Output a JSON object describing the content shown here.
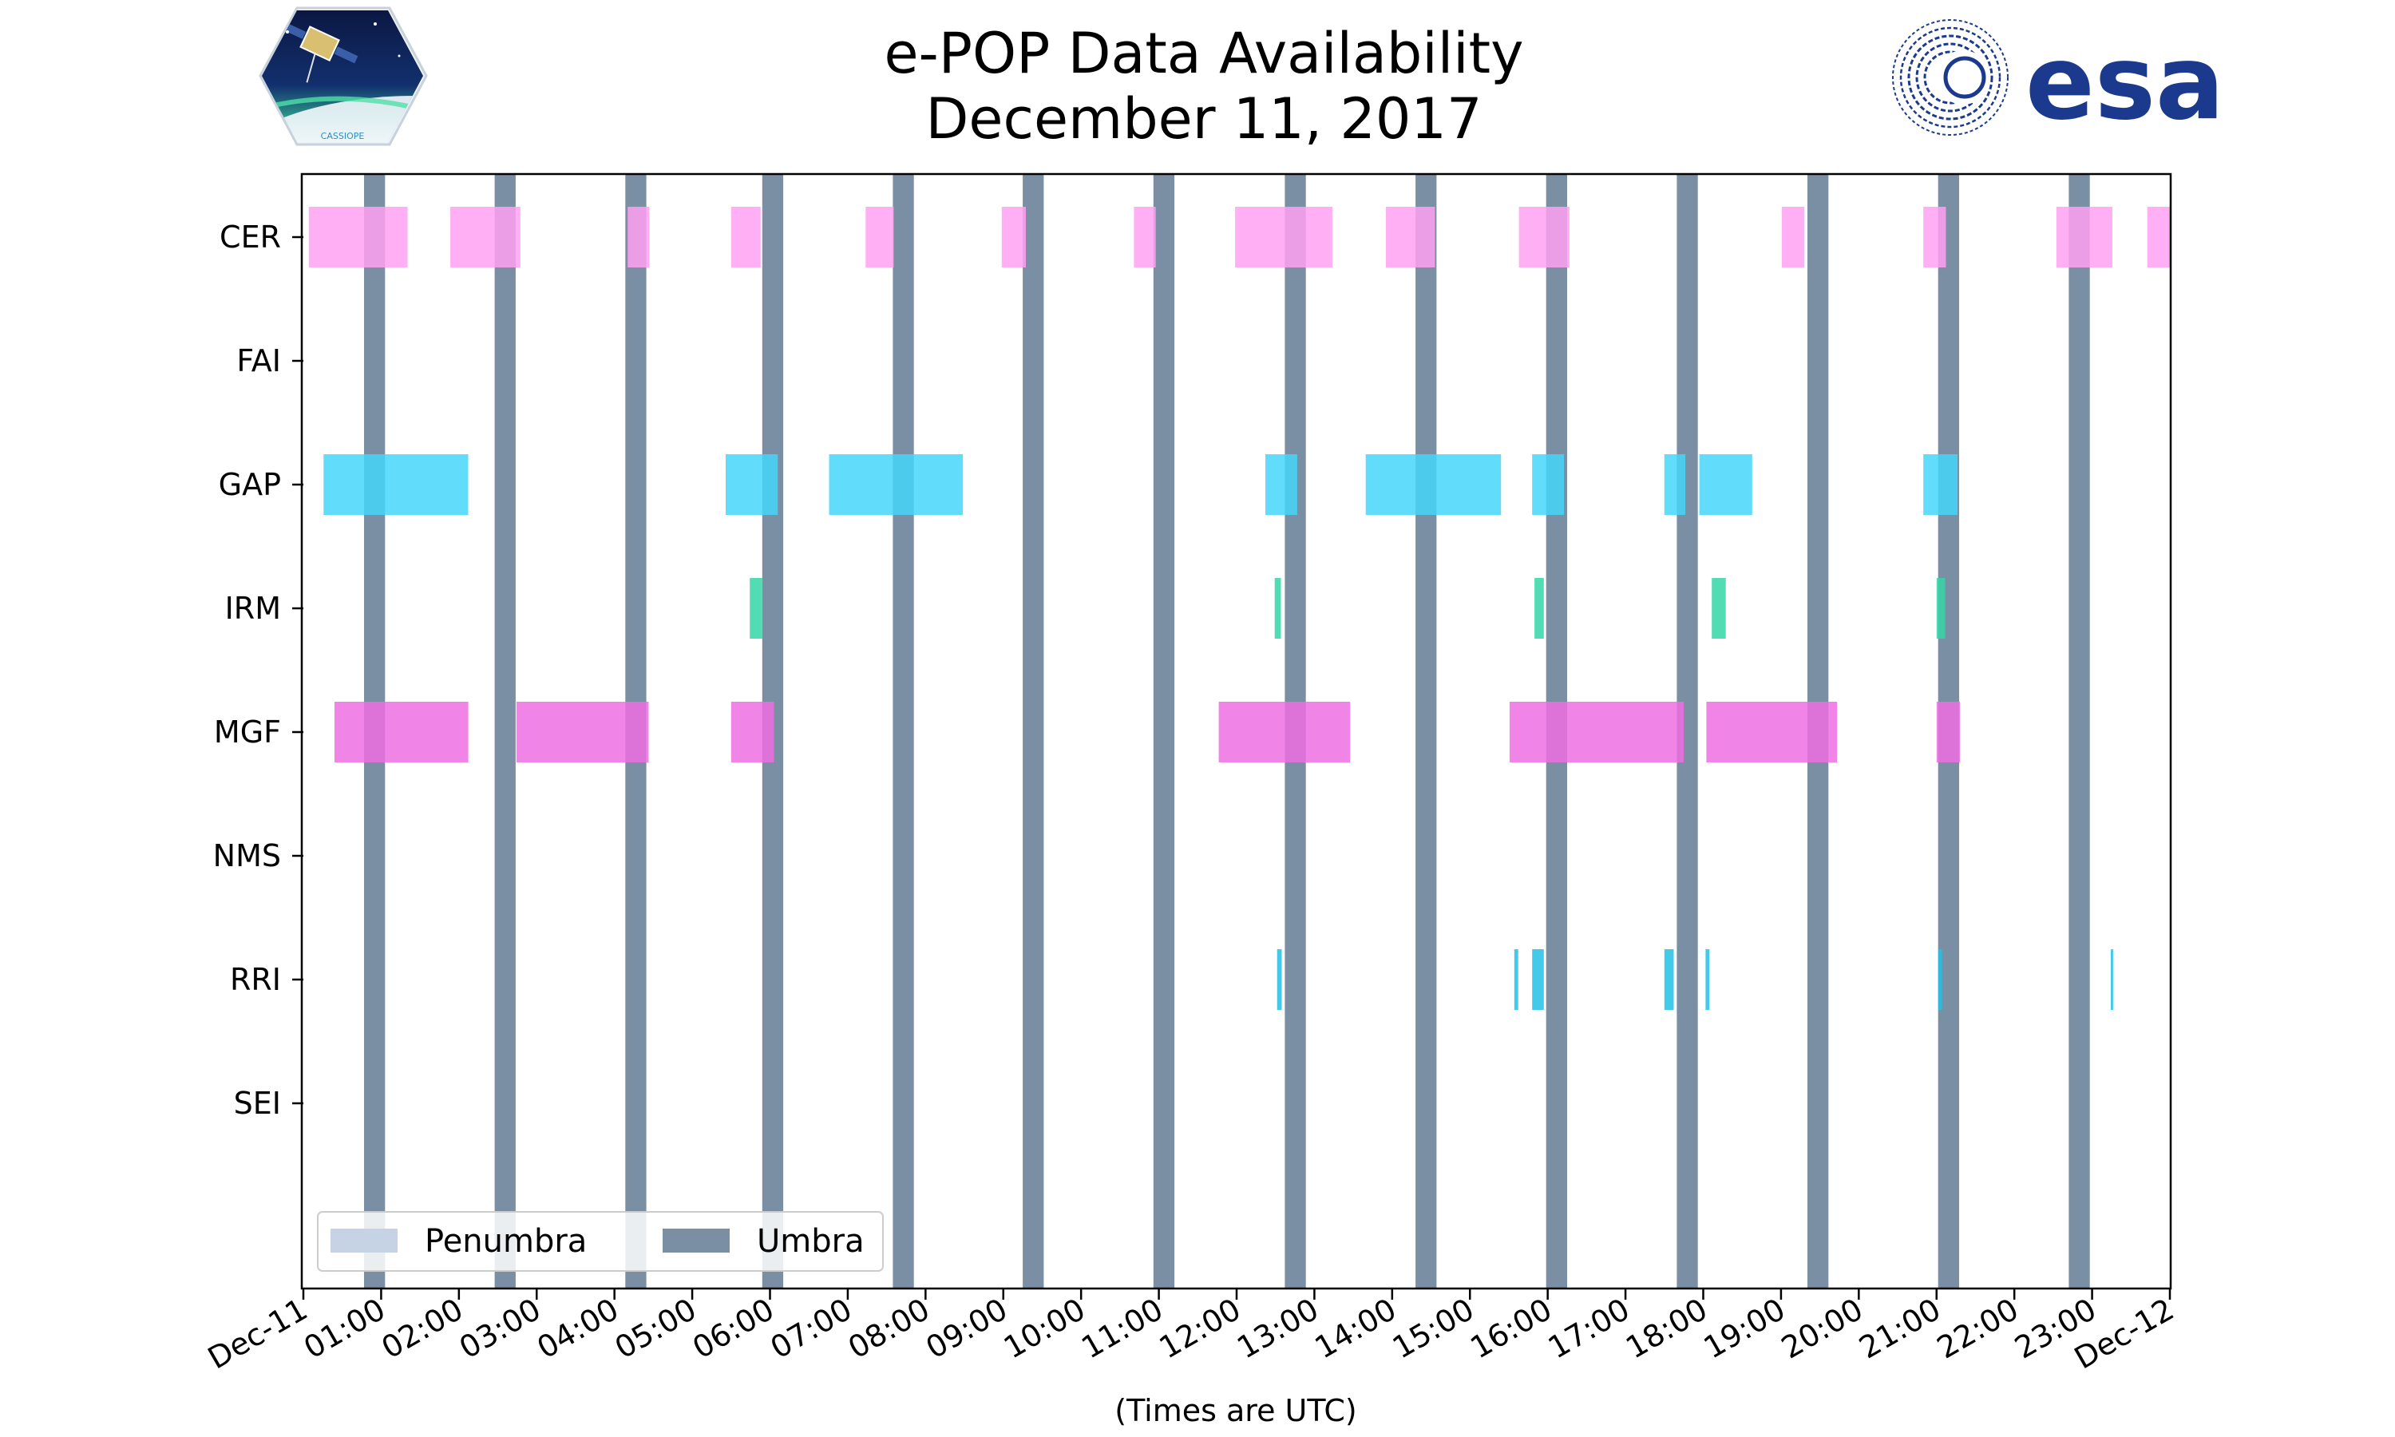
{
  "logos": {
    "mission_text": "CASSIOPE",
    "agency_text": "esa"
  },
  "chart_data": {
    "type": "timeline",
    "title": [
      "e-POP Data Availability",
      "December 11, 2017"
    ],
    "xlabel": "(Times are UTC)",
    "x_unit": "hours UTC",
    "xlim": [
      0,
      24
    ],
    "x_ticks": [
      {
        "value": 0,
        "label": "Dec-11"
      },
      {
        "value": 1,
        "label": "01:00"
      },
      {
        "value": 2,
        "label": "02:00"
      },
      {
        "value": 3,
        "label": "03:00"
      },
      {
        "value": 4,
        "label": "04:00"
      },
      {
        "value": 5,
        "label": "05:00"
      },
      {
        "value": 6,
        "label": "06:00"
      },
      {
        "value": 7,
        "label": "07:00"
      },
      {
        "value": 8,
        "label": "08:00"
      },
      {
        "value": 9,
        "label": "09:00"
      },
      {
        "value": 10,
        "label": "10:00"
      },
      {
        "value": 11,
        "label": "11:00"
      },
      {
        "value": 12,
        "label": "12:00"
      },
      {
        "value": 13,
        "label": "13:00"
      },
      {
        "value": 14,
        "label": "14:00"
      },
      {
        "value": 15,
        "label": "15:00"
      },
      {
        "value": 16,
        "label": "16:00"
      },
      {
        "value": 17,
        "label": "17:00"
      },
      {
        "value": 18,
        "label": "18:00"
      },
      {
        "value": 19,
        "label": "19:00"
      },
      {
        "value": 20,
        "label": "20:00"
      },
      {
        "value": 21,
        "label": "21:00"
      },
      {
        "value": 22,
        "label": "22:00"
      },
      {
        "value": 23,
        "label": "23:00"
      },
      {
        "value": 24,
        "label": "Dec-12"
      }
    ],
    "legend": {
      "placement": "lower-left",
      "entries": [
        {
          "name": "Penumbra",
          "color": "#c5d3e4"
        },
        {
          "name": "Umbra",
          "color": "#7a8ea4"
        }
      ]
    },
    "umbra_intervals": [
      [
        0.78,
        1.05
      ],
      [
        2.46,
        2.73
      ],
      [
        4.14,
        4.41
      ],
      [
        5.9,
        6.17
      ],
      [
        7.58,
        7.85
      ],
      [
        9.25,
        9.52
      ],
      [
        10.93,
        11.2
      ],
      [
        12.62,
        12.89
      ],
      [
        14.3,
        14.57
      ],
      [
        15.98,
        16.25
      ],
      [
        17.66,
        17.93
      ],
      [
        19.34,
        19.61
      ],
      [
        21.02,
        21.29
      ],
      [
        22.7,
        22.97
      ]
    ],
    "instruments": [
      {
        "name": "CER",
        "color": "#ffa1f1",
        "intervals": [
          [
            0.07,
            1.34
          ],
          [
            1.89,
            2.79
          ],
          [
            4.17,
            4.45
          ],
          [
            5.5,
            5.88
          ],
          [
            7.23,
            7.59
          ],
          [
            8.98,
            9.29
          ],
          [
            10.68,
            10.96
          ],
          [
            11.98,
            13.23
          ],
          [
            13.92,
            14.55
          ],
          [
            15.63,
            16.28
          ],
          [
            19.01,
            19.3
          ],
          [
            20.83,
            21.12
          ],
          [
            22.54,
            23.26
          ],
          [
            23.71,
            24.0
          ]
        ]
      },
      {
        "name": "FAI",
        "color": "#9ad6ff",
        "intervals": []
      },
      {
        "name": "GAP",
        "color": "#45d6fa",
        "intervals": [
          [
            0.26,
            2.12
          ],
          [
            5.43,
            6.1
          ],
          [
            6.76,
            8.48
          ],
          [
            12.37,
            12.78
          ],
          [
            13.66,
            15.4
          ],
          [
            15.8,
            16.21
          ],
          [
            17.5,
            17.77
          ],
          [
            17.95,
            18.63
          ],
          [
            20.83,
            21.27
          ]
        ]
      },
      {
        "name": "IRM",
        "color": "#34d6a6",
        "intervals": [
          [
            5.74,
            5.9
          ],
          [
            12.49,
            12.57
          ],
          [
            15.83,
            15.95
          ],
          [
            18.11,
            18.29
          ],
          [
            21.0,
            21.11
          ]
        ]
      },
      {
        "name": "MGF",
        "color": "#ef6fe3",
        "intervals": [
          [
            0.4,
            2.12
          ],
          [
            2.74,
            4.44
          ],
          [
            5.5,
            6.05
          ],
          [
            11.77,
            13.46
          ],
          [
            15.51,
            17.75
          ],
          [
            18.04,
            19.72
          ],
          [
            21.0,
            21.3
          ]
        ]
      },
      {
        "name": "NMS",
        "color": "#b8b8f0",
        "intervals": []
      },
      {
        "name": "RRI",
        "color": "#22c1e6",
        "intervals": [
          [
            12.52,
            12.58
          ],
          [
            15.57,
            15.62
          ],
          [
            15.8,
            15.95
          ],
          [
            17.5,
            17.62
          ],
          [
            18.03,
            18.08
          ],
          [
            21.02,
            21.07
          ],
          [
            23.24,
            23.27
          ]
        ]
      },
      {
        "name": "SEI",
        "color": "#c0c0c0",
        "intervals": []
      }
    ]
  }
}
